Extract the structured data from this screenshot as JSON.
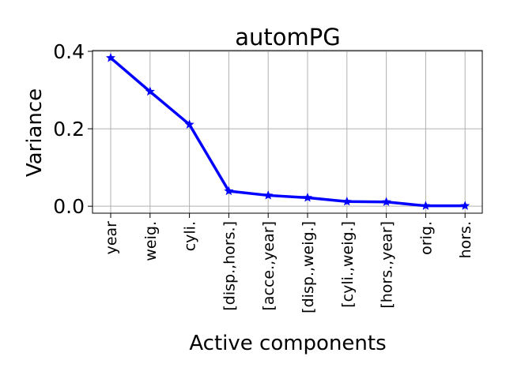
{
  "chart_data": {
    "type": "line",
    "title": "automPG",
    "xlabel": "Active components",
    "ylabel": "Variance",
    "categories": [
      "year",
      "weig.",
      "cyli.",
      "[disp.,hors.]",
      "[acce.,year]",
      "[disp.,weig.]",
      "[cyli.,weig.]",
      "[hors.,year]",
      "orig.",
      "hors."
    ],
    "series": [
      {
        "values": [
          0.383,
          0.296,
          0.211,
          0.039,
          0.028,
          0.022,
          0.012,
          0.011,
          0.001,
          0.001
        ],
        "color": "#0000ff",
        "marker": "star"
      }
    ],
    "yticks": [
      0.0,
      0.2,
      0.4
    ],
    "ytick_labels": [
      "0.0",
      "0.2",
      "0.4"
    ],
    "ylim": [
      -0.018,
      0.402
    ],
    "grid": true
  }
}
